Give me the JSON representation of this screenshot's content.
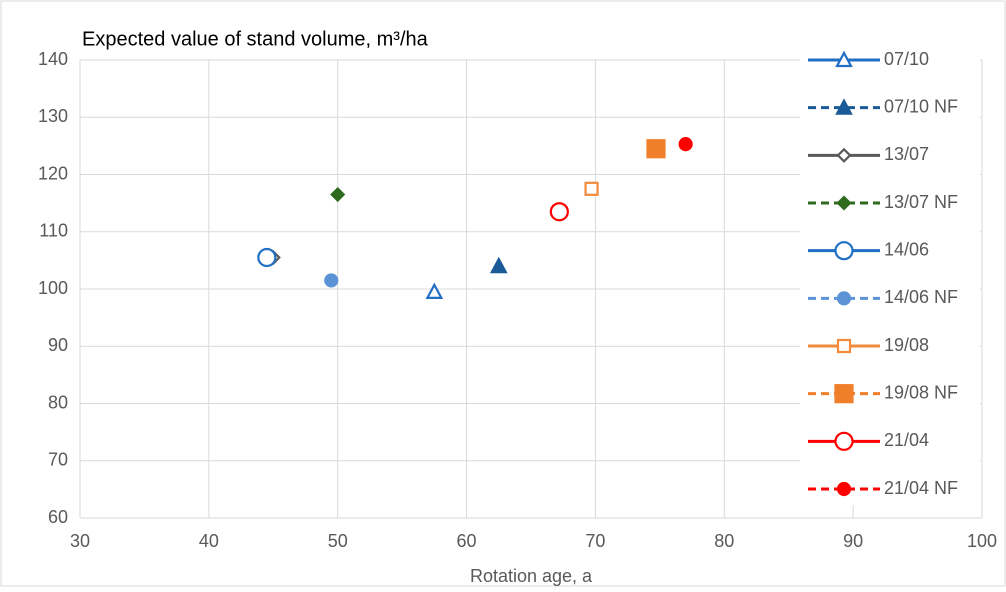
{
  "chart_data": {
    "type": "scatter",
    "title": "Expected value of stand volume,  m³/ha",
    "x_label": "Rotation age, a",
    "xlim": [
      30,
      100
    ],
    "xticks": [
      30,
      40,
      50,
      60,
      70,
      80,
      90,
      100
    ],
    "ylim": [
      60,
      140
    ],
    "yticks": [
      60,
      70,
      80,
      90,
      100,
      110,
      120,
      130,
      140
    ],
    "grid": true,
    "legend": "right",
    "series": [
      {
        "name": "07/10",
        "color": "#1f6fc5",
        "marker": "triangle",
        "filled": false,
        "dashed": false,
        "x": [
          57.5
        ],
        "values": [
          99.5
        ]
      },
      {
        "name": "07/10 NF",
        "color": "#1a5a96",
        "marker": "triangle",
        "filled": true,
        "dashed": true,
        "x": [
          62.5
        ],
        "values": [
          104
        ]
      },
      {
        "name": "13/07",
        "color": "#595959",
        "marker": "diamond",
        "filled": false,
        "dashed": false,
        "x": [
          45
        ],
        "values": [
          105.5
        ]
      },
      {
        "name": "13/07 NF",
        "color": "#2e6b1f",
        "marker": "diamond",
        "filled": true,
        "dashed": true,
        "x": [
          50
        ],
        "values": [
          116.5
        ]
      },
      {
        "name": "14/06",
        "color": "#1f6fc5",
        "marker": "circle-large",
        "filled": false,
        "dashed": false,
        "x": [
          44.5
        ],
        "values": [
          105.5
        ]
      },
      {
        "name": "14/06 NF",
        "color": "#5b93d6",
        "marker": "circle",
        "filled": true,
        "dashed": true,
        "x": [
          49.5
        ],
        "values": [
          101.5
        ]
      },
      {
        "name": "19/08",
        "color": "#f28a3c",
        "marker": "square",
        "filled": false,
        "dashed": false,
        "x": [
          69.7
        ],
        "values": [
          117.5
        ]
      },
      {
        "name": "19/08 NF",
        "color": "#f07f2a",
        "marker": "square-large",
        "filled": true,
        "dashed": true,
        "x": [
          74.7
        ],
        "values": [
          124.5
        ]
      },
      {
        "name": "21/04",
        "color": "#ff0000",
        "marker": "circle-large",
        "filled": false,
        "dashed": false,
        "x": [
          67.2
        ],
        "values": [
          113.5
        ]
      },
      {
        "name": "21/04 NF",
        "color": "#ff0000",
        "marker": "circle",
        "filled": true,
        "dashed": true,
        "x": [
          77
        ],
        "values": [
          125.3
        ]
      }
    ]
  }
}
